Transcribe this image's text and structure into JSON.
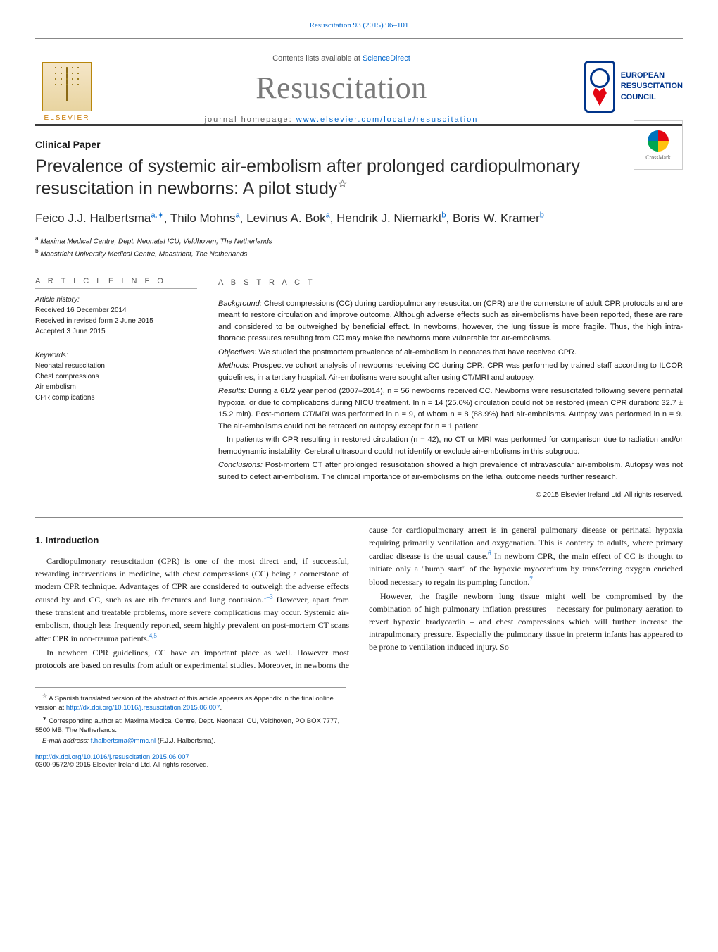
{
  "header": {
    "citation": "Resuscitation 93 (2015) 96–101",
    "contents_prefix": "Contents lists available at ",
    "contents_link": "ScienceDirect",
    "journal_title": "Resuscitation",
    "homepage_label": "journal homepage: ",
    "homepage_url": "www.elsevier.com/locate/resuscitation",
    "elsevier_label": "ELSEVIER",
    "erc_line1": "EUROPEAN",
    "erc_line2": "RESUSCITATION",
    "erc_line3": "COUNCIL",
    "crossmark": "CrossMark"
  },
  "article": {
    "type": "Clinical Paper",
    "title": "Prevalence of systemic air-embolism after prolonged cardiopulmonary resuscitation in newborns: A pilot study",
    "title_sup": "☆",
    "authors_html": "Feico J.J. Halbertsma",
    "author_list": [
      {
        "name": "Feico J.J. Halbertsma",
        "sup": "a,∗"
      },
      {
        "name": "Thilo Mohns",
        "sup": "a"
      },
      {
        "name": "Levinus A. Bok",
        "sup": "a"
      },
      {
        "name": "Hendrik J. Niemarkt",
        "sup": "b"
      },
      {
        "name": "Boris W. Kramer",
        "sup": "b"
      }
    ],
    "affiliations": [
      {
        "sup": "a",
        "text": "Maxima Medical Centre, Dept. Neonatal ICU, Veldhoven, The Netherlands"
      },
      {
        "sup": "b",
        "text": "Maastricht University Medical Centre, Maastricht, The Netherlands"
      }
    ]
  },
  "info": {
    "label": "A R T I C L E   I N F O",
    "history_label": "Article history:",
    "received": "Received 16 December 2014",
    "revised": "Received in revised form 2 June 2015",
    "accepted": "Accepted 3 June 2015",
    "keywords_label": "Keywords:",
    "keywords": [
      "Neonatal resuscitation",
      "Chest compressions",
      "Air embolism",
      "CPR complications"
    ]
  },
  "abstract": {
    "label": "A B S T R A C T",
    "background_label": "Background:",
    "background": "Chest compressions (CC) during cardiopulmonary resuscitation (CPR) are the cornerstone of adult CPR protocols and are meant to restore circulation and improve outcome. Although adverse effects such as air-embolisms have been reported, these are rare and considered to be outweighed by beneficial effect. In newborns, however, the lung tissue is more fragile. Thus, the high intra-thoracic pressures resulting from CC may make the newborns more vulnerable for air-embolisms.",
    "objectives_label": "Objectives:",
    "objectives": "We studied the postmortem prevalence of air-embolism in neonates that have received CPR.",
    "methods_label": "Methods:",
    "methods": "Prospective cohort analysis of newborns receiving CC during CPR. CPR was performed by trained staff according to ILCOR guidelines, in a tertiary hospital. Air-embolisms were sought after using CT/MRI and autopsy.",
    "results_label": "Results:",
    "results1": "During a 61/2 year period (2007–2014), n = 56 newborns received CC. Newborns were resuscitated following severe perinatal hypoxia, or due to complications during NICU treatment. In n = 14 (25.0%) circulation could not be restored (mean CPR duration: 32.7 ± 15.2 min). Post-mortem CT/MRI was performed in n = 9, of whom n = 8 (88.9%) had air-embolisms. Autopsy was performed in n = 9. The air-embolisms could not be retraced on autopsy except for n = 1 patient.",
    "results2": "In patients with CPR resulting in restored circulation (n = 42), no CT or MRI was performed for comparison due to radiation and/or hemodynamic instability. Cerebral ultrasound could not identify or exclude air-embolisms in this subgroup.",
    "conclusions_label": "Conclusions:",
    "conclusions": "Post-mortem CT after prolonged resuscitation showed a high prevalence of intravascular air-embolism. Autopsy was not suited to detect air-embolism. The clinical importance of air-embolisms on the lethal outcome needs further research.",
    "copyright": "© 2015 Elsevier Ireland Ltd. All rights reserved."
  },
  "body": {
    "intro_heading": "1. Introduction",
    "p1": "Cardiopulmonary resuscitation (CPR) is one of the most direct and, if successful, rewarding interventions in medicine, with chest compressions (CC) being a cornerstone of modern CPR technique. Advantages of CPR are considered to outweigh the adverse effects caused by and CC, such as are rib fractures and lung contusion.",
    "p1_sup": "1–3",
    "p1b": " However, apart from these transient and treatable problems, more severe complications may occur. Systemic air-embolism, though",
    "p2a": "less frequently reported, seem highly prevalent on post-mortem CT scans after CPR in non-trauma patients.",
    "p2_sup": "4,5",
    "p3": "In newborn CPR guidelines, CC have an important place as well. However most protocols are based on results from adult or experimental studies. Moreover, in newborns the cause for cardiopulmonary arrest is in general pulmonary disease or perinatal hypoxia requiring primarily ventilation and oxygenation. This is contrary to adults, where primary cardiac disease is the usual cause.",
    "p3_sup": "6",
    "p3b": " In newborn CPR, the main effect of CC is thought to initiate only a \"bump start\" of the hypoxic myocardium by transferring oxygen enriched blood necessary to regain its pumping function.",
    "p3_sup2": "7",
    "p4": "However, the fragile newborn lung tissue might well be compromised by the combination of high pulmonary inflation pressures – necessary for pulmonary aeration to revert hypoxic bradycardia – and chest compressions which will further increase the intrapulmonary pressure. Especially the pulmonary tissue in preterm infants has appeared to be prone to ventilation induced injury. So"
  },
  "footnotes": {
    "f1_sup": "☆",
    "f1": "A Spanish translated version of the abstract of this article appears as Appendix in the final online version at ",
    "f1_link": "http://dx.doi.org/10.1016/j.resuscitation.2015.06.007",
    "f2_sup": "∗",
    "f2": "Corresponding author at: Maxima Medical Centre, Dept. Neonatal ICU, Veldhoven, PO BOX 7777, 5500 MB, The Netherlands.",
    "email_label": "E-mail address: ",
    "email": "f.halbertsma@mmc.nl",
    "email_suffix": " (F.J.J. Halbertsma).",
    "doi_link": "http://dx.doi.org/10.1016/j.resuscitation.2015.06.007",
    "issn": "0300-9572/© 2015 Elsevier Ireland Ltd. All rights reserved."
  },
  "colors": {
    "link": "#0066cc",
    "elsevier_orange": "#c87800",
    "erc_blue": "#00348a",
    "text": "#1a1a1a",
    "gray": "#7a7a7a"
  },
  "typography": {
    "journal_title_pt": 44,
    "article_title_pt": 25,
    "authors_pt": 17,
    "body_pt": 12,
    "abstract_pt": 11,
    "info_pt": 10,
    "footnote_pt": 9.5
  }
}
